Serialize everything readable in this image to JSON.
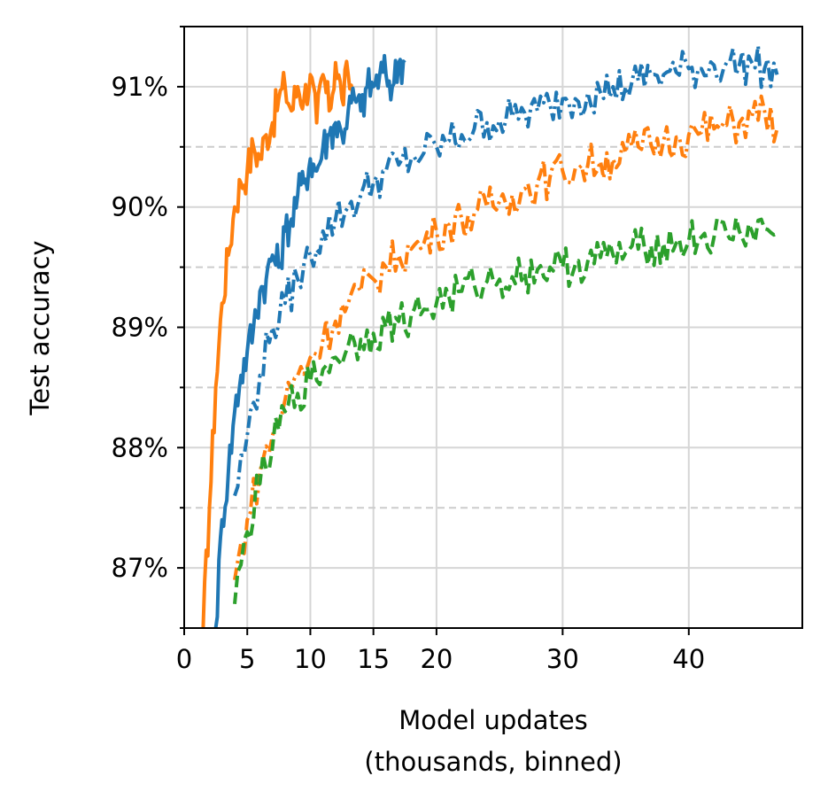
{
  "chart_data": {
    "type": "line",
    "title": "",
    "xlabel_lines": [
      "Model updates",
      "(thousands, binned)"
    ],
    "ylabel": "Test accuracy",
    "xlim": [
      0,
      49
    ],
    "ylim": [
      86.5,
      91.5
    ],
    "xticks": [
      0,
      5,
      10,
      15,
      20,
      30,
      40
    ],
    "xtick_labels": [
      "0",
      "5",
      "10",
      "15",
      "20",
      "30",
      "40"
    ],
    "yticks": [
      87,
      88,
      89,
      90,
      91
    ],
    "ytick_labels": [
      "87%",
      "88%",
      "89%",
      "90%",
      "91%"
    ],
    "y_minor_ticks": [
      87.5,
      88.5,
      89.5,
      90.5
    ],
    "grid": {
      "major": true,
      "minor_y_dashed": true
    },
    "legend": "none",
    "series": [
      {
        "color": "#ff7f0e",
        "style": "solid",
        "x": [
          1.5,
          2,
          2.5,
          3,
          3.5,
          4,
          4.5,
          5,
          5.5,
          6,
          6.5,
          7,
          7.5,
          8,
          8.5,
          9,
          9.5,
          10,
          10.5,
          11,
          11.5,
          12,
          12.5,
          13,
          13.5
        ],
        "y": [
          86.5,
          87.5,
          88.5,
          89.2,
          89.6,
          90.0,
          90.2,
          90.3,
          90.5,
          90.4,
          90.6,
          90.7,
          90.9,
          91.0,
          90.8,
          91.0,
          90.9,
          91.1,
          90.7,
          91.1,
          90.8,
          91.2,
          90.9,
          91.1,
          90.9
        ]
      },
      {
        "color": "#1f77b4",
        "style": "solid",
        "x": [
          2.5,
          3,
          3.5,
          4,
          4.5,
          5,
          5.5,
          6,
          6.5,
          7,
          7.5,
          8,
          8.5,
          9,
          9.5,
          10,
          10.5,
          11,
          11.5,
          12,
          12.5,
          13,
          13.5,
          14,
          14.5,
          15,
          15.5,
          16,
          16.5,
          17,
          17.5
        ],
        "y": [
          86.5,
          87.4,
          87.8,
          88.3,
          88.6,
          88.8,
          89.0,
          89.3,
          89.4,
          89.6,
          89.5,
          89.8,
          89.9,
          90.1,
          90.2,
          90.4,
          90.3,
          90.5,
          90.6,
          90.7,
          90.6,
          90.8,
          90.9,
          90.8,
          91.0,
          91.0,
          91.1,
          91.1,
          91.0,
          91.2,
          91.2
        ]
      },
      {
        "color": "#1f77b4",
        "style": "dashdot",
        "x": [
          4,
          5,
          6,
          7,
          8,
          9,
          10,
          11,
          12,
          13,
          14,
          15,
          16,
          17,
          18,
          19,
          20,
          21,
          22,
          23,
          24,
          25,
          26,
          27,
          28,
          29,
          30,
          31,
          32,
          33,
          34,
          35,
          36,
          37,
          38,
          39,
          40,
          41,
          42,
          43,
          44,
          45,
          46,
          47
        ],
        "y": [
          87.6,
          88.1,
          88.6,
          89.0,
          89.2,
          89.4,
          89.6,
          89.8,
          89.9,
          90.0,
          90.1,
          90.2,
          90.3,
          90.35,
          90.4,
          90.45,
          90.5,
          90.55,
          90.6,
          90.65,
          90.7,
          90.72,
          90.75,
          90.78,
          90.8,
          90.85,
          90.9,
          90.9,
          90.95,
          90.95,
          91.0,
          91.0,
          91.05,
          91.1,
          91.1,
          91.12,
          91.15,
          91.15,
          91.18,
          91.2,
          91.18,
          91.2,
          91.15,
          91.1
        ]
      },
      {
        "color": "#ff7f0e",
        "style": "dashdot",
        "x": [
          4,
          5,
          6,
          7,
          8,
          9,
          10,
          11,
          12,
          13,
          14,
          15,
          16,
          17,
          18,
          19,
          20,
          21,
          22,
          23,
          24,
          25,
          26,
          27,
          28,
          29,
          30,
          31,
          32,
          33,
          34,
          35,
          36,
          37,
          38,
          39,
          40,
          41,
          42,
          43,
          44,
          45,
          46,
          47
        ],
        "y": [
          86.9,
          87.4,
          87.8,
          88.1,
          88.4,
          88.6,
          88.75,
          88.9,
          89.05,
          89.2,
          89.3,
          89.4,
          89.5,
          89.6,
          89.65,
          89.7,
          89.8,
          89.85,
          89.9,
          89.95,
          90.0,
          90.05,
          90.1,
          90.15,
          90.2,
          90.25,
          90.3,
          90.32,
          90.35,
          90.38,
          90.4,
          90.45,
          90.5,
          90.52,
          90.55,
          90.58,
          90.6,
          90.62,
          90.65,
          90.68,
          90.7,
          90.75,
          90.8,
          90.65
        ]
      },
      {
        "color": "#2ca02c",
        "style": "dashed",
        "x": [
          4,
          5,
          6,
          7,
          8,
          9,
          10,
          11,
          12,
          13,
          14,
          15,
          16,
          17,
          18,
          19,
          20,
          21,
          22,
          23,
          24,
          25,
          26,
          27,
          28,
          29,
          30,
          31,
          32,
          33,
          34,
          35,
          36,
          37,
          38,
          39,
          40,
          41,
          42,
          43,
          44,
          45,
          46,
          47
        ],
        "y": [
          86.7,
          87.3,
          87.7,
          88.0,
          88.3,
          88.45,
          88.55,
          88.65,
          88.75,
          88.85,
          88.9,
          88.95,
          89.0,
          89.05,
          89.1,
          89.15,
          89.2,
          89.25,
          89.3,
          89.35,
          89.38,
          89.4,
          89.42,
          89.45,
          89.48,
          89.5,
          89.5,
          89.52,
          89.55,
          89.58,
          89.6,
          89.62,
          89.65,
          89.68,
          89.7,
          89.7,
          89.72,
          89.75,
          89.75,
          89.78,
          89.8,
          89.8,
          89.82,
          89.78
        ]
      }
    ]
  }
}
